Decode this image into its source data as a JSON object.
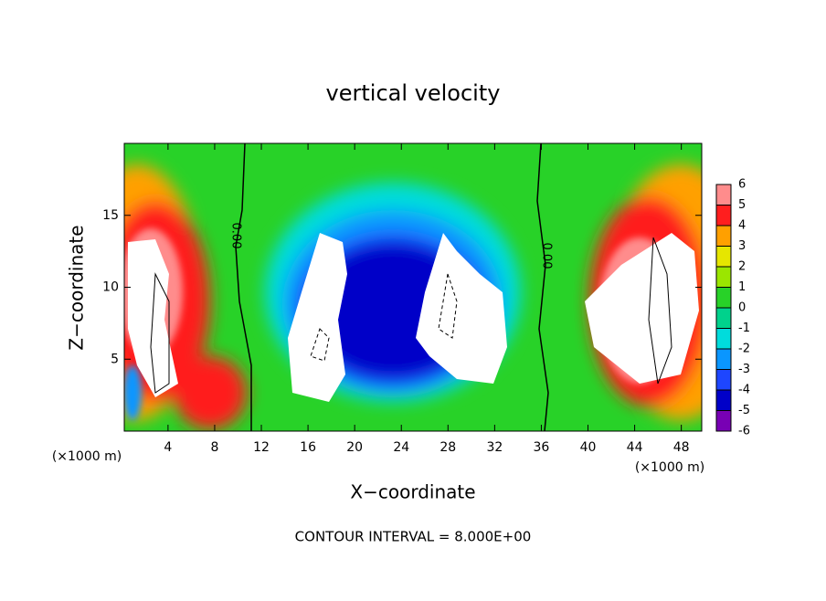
{
  "chart_data": {
    "type": "contour",
    "title": "vertical velocity",
    "xlabel": "X−coordinate",
    "ylabel": "Z−coordinate",
    "x_unit_labels": [
      "(×1000 m)",
      "(×1000 m)"
    ],
    "annotation": "CONTOUR INTERVAL = 8.000E+00",
    "contour_labels": [
      "0.00",
      "0.00"
    ],
    "xlim": [
      0.25,
      49.75
    ],
    "ylim": [
      0,
      20
    ],
    "xticks": [
      4,
      8,
      12,
      16,
      20,
      24,
      28,
      32,
      36,
      40,
      44,
      48
    ],
    "yticks": [
      5,
      10,
      15
    ],
    "colorbar": {
      "ticks": [
        -6,
        -5,
        -4,
        -3,
        -2,
        -1,
        0,
        1,
        2,
        3,
        4,
        5,
        6
      ],
      "colors": [
        "#7800b4",
        "#0000c8",
        "#1e46ff",
        "#0a96ff",
        "#00dcdc",
        "#00d28c",
        "#28d228",
        "#9be600",
        "#e6e600",
        "#ffa000",
        "#ff1e1e",
        "#ff8c8c"
      ]
    }
  }
}
